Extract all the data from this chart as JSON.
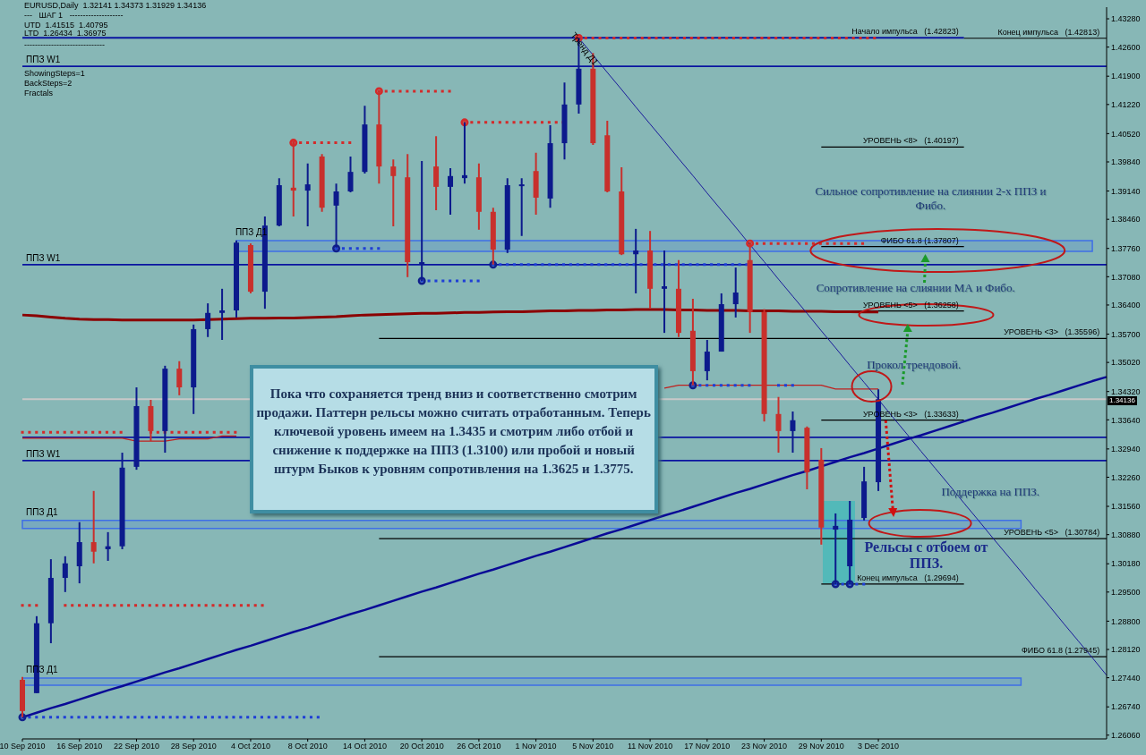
{
  "chart_data": {
    "type": "candlestick",
    "categories": [
      "10 Sep 2010",
      null,
      null,
      null,
      "16 Sep 2010",
      null,
      null,
      null,
      "22 Sep 2010",
      null,
      null,
      null,
      "28 Sep 2010",
      null,
      null,
      null,
      "4 Oct 2010",
      null,
      null,
      null,
      "8 Oct 2010",
      null,
      null,
      null,
      "14 Oct 2010",
      null,
      null,
      null,
      "20 Oct 2010",
      null,
      null,
      null,
      "26 Oct 2010",
      null,
      null,
      null,
      "1 Nov 2010",
      null,
      null,
      null,
      "5 Nov 2010",
      null,
      null,
      null,
      "11 Nov 2010",
      null,
      null,
      null,
      "17 Nov 2010",
      null,
      null,
      null,
      "23 Nov 2010",
      null,
      null,
      null,
      "29 Nov 2010",
      null,
      null,
      null,
      "3 Dec 2010",
      null,
      null,
      null,
      null,
      null,
      null,
      null,
      null,
      null,
      null,
      null,
      null,
      null,
      null,
      null,
      null
    ],
    "ohlc": [
      [
        1.2739,
        1.2746,
        1.2649,
        1.2664
      ],
      [
        1.2707,
        1.2892,
        1.2707,
        1.2875
      ],
      [
        1.2875,
        1.3029,
        1.2827,
        1.2984
      ],
      [
        1.2984,
        1.3036,
        1.295,
        1.3019
      ],
      [
        1.3012,
        1.3118,
        1.2971,
        1.307
      ],
      [
        1.307,
        1.3193,
        1.3019,
        1.3047
      ],
      [
        1.3053,
        1.3094,
        1.3025,
        1.306
      ],
      [
        1.306,
        1.3285,
        1.3053,
        1.3249
      ],
      [
        1.3251,
        1.3442,
        1.3244,
        1.3397
      ],
      [
        1.3397,
        1.3412,
        1.3313,
        1.3337
      ],
      [
        1.3337,
        1.3494,
        1.3285,
        1.3487
      ],
      [
        1.3487,
        1.3505,
        1.3423,
        1.3442
      ],
      [
        1.3442,
        1.3593,
        1.3378,
        1.3582
      ],
      [
        1.3582,
        1.3644,
        1.3563,
        1.3621
      ],
      [
        1.3621,
        1.3679,
        1.3556,
        1.3627
      ],
      [
        1.3627,
        1.3795,
        1.361,
        1.379
      ],
      [
        1.3784,
        1.3788,
        1.3668,
        1.3672
      ],
      [
        1.3672,
        1.3853,
        1.3631,
        1.3831
      ],
      [
        1.3831,
        1.3945,
        1.3829,
        1.3928
      ],
      [
        1.3922,
        1.4029,
        1.3853,
        1.3915
      ],
      [
        1.3915,
        1.398,
        1.3829,
        1.393
      ],
      [
        1.3997,
        1.4003,
        1.3864,
        1.3874
      ],
      [
        1.3879,
        1.3932,
        1.3778,
        1.3913
      ],
      [
        1.3913,
        1.3997,
        1.3911,
        1.396
      ],
      [
        1.396,
        1.4119,
        1.3956,
        1.4074
      ],
      [
        1.4074,
        1.4154,
        1.3932,
        1.3973
      ],
      [
        1.3973,
        1.399,
        1.3829,
        1.395
      ],
      [
        1.3947,
        1.4003,
        1.3707,
        1.3743
      ],
      [
        1.3737,
        1.3986,
        1.3698,
        1.3743
      ],
      [
        1.3973,
        1.4046,
        1.3868,
        1.3924
      ],
      [
        1.3924,
        1.3969,
        1.3857,
        1.395
      ],
      [
        1.3945,
        1.4079,
        1.3932,
        1.3952
      ],
      [
        1.3947,
        1.398,
        1.3821,
        1.3864
      ],
      [
        1.3864,
        1.3874,
        1.3737,
        1.3773
      ],
      [
        1.3773,
        1.3945,
        1.3765,
        1.3928
      ],
      [
        1.3926,
        1.3945,
        1.3806,
        1.393
      ],
      [
        1.3962,
        1.4006,
        1.3857,
        1.3898
      ],
      [
        1.3896,
        1.4072,
        1.3874,
        1.4029
      ],
      [
        1.4029,
        1.4175,
        1.399,
        1.4122
      ],
      [
        1.4122,
        1.4282,
        1.41,
        1.4208
      ],
      [
        1.4208,
        1.4246,
        1.4025,
        1.4029
      ],
      [
        1.4048,
        1.4083,
        1.3911,
        1.3913
      ],
      [
        1.3913,
        1.3971,
        1.376,
        1.3762
      ],
      [
        1.3762,
        1.3823,
        1.3668,
        1.3771
      ],
      [
        1.3771,
        1.3818,
        1.3631,
        1.3679
      ],
      [
        1.3679,
        1.3771,
        1.3573,
        1.3685
      ],
      [
        1.3679,
        1.3748,
        1.3563,
        1.3573
      ],
      [
        1.3578,
        1.3655,
        1.3447,
        1.3481
      ],
      [
        1.3481,
        1.3556,
        1.3459,
        1.3528
      ],
      [
        1.3528,
        1.3668,
        1.3528,
        1.3642
      ],
      [
        1.3642,
        1.373,
        1.361,
        1.367
      ],
      [
        1.3748,
        1.3788,
        1.3573,
        1.3623
      ],
      [
        1.3623,
        1.363,
        1.336,
        1.3378
      ],
      [
        1.3378,
        1.3419,
        1.3285,
        1.3337
      ],
      [
        1.3337,
        1.3384,
        1.3285,
        1.3363
      ],
      [
        1.3345,
        1.3348,
        1.3197,
        1.3238
      ],
      [
        1.3268,
        1.3296,
        1.3064,
        1.3105
      ],
      [
        1.31,
        1.3139,
        1.2969,
        1.3109
      ],
      [
        1.3012,
        1.3169,
        1.2969,
        1.3124
      ],
      [
        1.3128,
        1.3251,
        1.3122,
        1.3216
      ],
      [
        1.32141,
        1.34373,
        1.31929,
        1.34136
      ],
      null,
      null,
      null,
      null,
      null,
      null,
      null,
      null,
      null,
      null,
      null,
      null,
      null,
      null,
      null,
      null
    ],
    "colors": [
      "#c8302c",
      "#0c1a8c",
      "#0c1a8c",
      "#0c1a8c",
      "#0c1a8c",
      "#c8302c",
      "#0c1a8c",
      "#0c1a8c",
      "#0c1a8c",
      "#c8302c",
      "#0c1a8c",
      "#c8302c",
      "#0c1a8c",
      "#0c1a8c",
      "#0c1a8c",
      "#0c1a8c",
      "#c8302c",
      "#0c1a8c",
      "#0c1a8c",
      "#c8302c",
      "#0c1a8c",
      "#c8302c",
      "#0c1a8c",
      "#0c1a8c",
      "#0c1a8c",
      "#c8302c",
      "#c8302c",
      "#c8302c",
      "#0c1a8c",
      "#c8302c",
      "#0c1a8c",
      "#0c1a8c",
      "#c8302c",
      "#c8302c",
      "#0c1a8c",
      "#0c1a8c",
      "#c8302c",
      "#0c1a8c",
      "#0c1a8c",
      "#0c1a8c",
      "#c8302c",
      "#c8302c",
      "#c8302c",
      "#0c1a8c",
      "#c8302c",
      "#0c1a8c",
      "#c8302c",
      "#c8302c",
      "#0c1a8c",
      "#0c1a8c",
      "#0c1a8c",
      "#c8302c",
      "#c8302c",
      "#c8302c",
      "#0c1a8c",
      "#c8302c",
      "#c8302c",
      "#0c1a8c",
      "#0c1a8c",
      "#0c1a8c",
      "#0c1a8c",
      null,
      null,
      null,
      null,
      null,
      null,
      null,
      null,
      null,
      null,
      null,
      null,
      null,
      null,
      null,
      null
    ],
    "series": [
      {
        "type": "line",
        "color": "#8b0000",
        "values": [
          1.3616,
          1.3614,
          1.3611,
          1.3608,
          1.3606,
          1.3605,
          1.3605,
          1.3604,
          1.3604,
          1.3604,
          1.3604,
          1.3604,
          1.3604,
          1.3605,
          1.3606,
          1.3607,
          1.3608,
          1.3608,
          1.3609,
          1.3609,
          1.361,
          1.3611,
          1.3612,
          1.3614,
          1.3616,
          1.3617,
          1.3618,
          1.3619,
          1.362,
          1.362,
          1.3621,
          1.3622,
          1.3622,
          1.3623,
          1.3624,
          1.3624,
          1.3625,
          1.3626,
          1.3626,
          1.3627,
          1.3627,
          1.3628,
          1.3628,
          1.3629,
          1.3629,
          1.3629,
          1.3628,
          1.3628,
          1.3627,
          1.3627,
          1.3627,
          1.3626,
          1.3626,
          1.3626,
          1.3625,
          1.3625,
          1.3625,
          1.3624,
          1.3624,
          1.3623,
          1.3623,
          null,
          null,
          null,
          null,
          null,
          null,
          null,
          null,
          null,
          null,
          null,
          null,
          null,
          null,
          null,
          null
        ]
      },
      {
        "type": "line",
        "color": "#c0201e",
        "values": [
          1.332,
          1.332,
          1.332,
          1.332,
          1.332,
          1.332,
          1.332,
          1.332,
          1.3313,
          1.3313,
          1.3313,
          1.3318,
          1.3318,
          1.3318,
          1.3325,
          1.3325,
          null,
          null,
          null,
          null,
          null,
          null,
          null,
          null,
          null,
          null,
          null,
          null,
          null,
          null,
          null,
          null,
          null,
          null,
          null,
          null,
          null,
          null,
          null,
          null,
          null,
          null,
          null,
          null,
          null,
          1.344,
          1.3447,
          1.3447,
          1.3447,
          1.3447,
          1.3447,
          1.3447,
          1.3447,
          1.3447,
          1.3447,
          1.3447,
          1.3447,
          1.3438,
          1.3438,
          1.3438,
          1.3438,
          null,
          null,
          null,
          null,
          null,
          null,
          null,
          null,
          null,
          null,
          null,
          null,
          null,
          null,
          null,
          null
        ]
      },
      {
        "type": "line",
        "line_style": "dotted",
        "color": "#d42a2a",
        "values": [
          1.3334,
          1.3334,
          1.3334,
          1.3334,
          1.3334,
          1.3334,
          1.3334,
          1.3334,
          null,
          1.3334,
          1.3334,
          1.3334,
          1.3334,
          1.3334,
          1.3334,
          1.3334,
          null,
          null,
          null,
          1.403,
          1.403,
          1.403,
          1.403,
          1.403,
          null,
          null,
          null,
          null,
          null,
          null,
          null,
          1.4079,
          1.4079,
          1.4079,
          1.4079,
          1.4079,
          1.4079,
          1.4079,
          1.4079,
          null,
          null,
          null,
          null,
          null,
          null,
          null,
          null,
          null,
          null,
          null,
          null,
          1.3788,
          1.3788,
          1.3788,
          1.3788,
          1.3788,
          1.3788,
          1.3788,
          1.3788,
          1.3788,
          null,
          null,
          null,
          null,
          null,
          null,
          null,
          null,
          null,
          null,
          null,
          null,
          null,
          null,
          null,
          null,
          null
        ]
      },
      {
        "type": "line",
        "line_style": "dotted",
        "color": "#d42a2a",
        "values": [
          1.2918,
          1.2918,
          null,
          1.2918,
          1.2918,
          1.2918,
          1.2918,
          1.2918,
          1.2918,
          1.2918,
          1.2918,
          1.2918,
          1.2918,
          1.2918,
          1.2918,
          1.2918,
          1.2918,
          1.2918,
          null,
          null,
          null,
          null,
          null,
          null,
          null,
          1.4154,
          1.4154,
          1.4154,
          1.4154,
          1.4154,
          1.4154,
          null,
          null,
          null,
          null,
          null,
          null,
          null,
          null,
          1.4282,
          1.4282,
          1.4282,
          1.4282,
          1.4282,
          1.4282,
          1.4282,
          1.4282,
          1.4282,
          1.4282,
          1.4282,
          1.4282,
          1.4282,
          1.4282,
          1.4282,
          1.4282,
          1.4282,
          1.4282,
          1.4282,
          1.4282,
          1.4282,
          1.4282,
          null,
          null,
          null,
          null,
          null,
          null,
          null,
          null,
          null,
          null,
          null,
          null,
          null,
          null,
          null,
          null
        ]
      },
      {
        "type": "line",
        "line_style": "dotted",
        "color": "#1f3fd6",
        "values": [
          1.2649,
          1.2649,
          1.2649,
          1.2649,
          1.2649,
          1.2649,
          1.2649,
          1.2649,
          1.2649,
          1.2649,
          1.2649,
          1.2649,
          1.2649,
          1.2649,
          1.2649,
          1.2649,
          1.2649,
          1.2649,
          1.2649,
          1.2649,
          1.2649,
          1.2649,
          null,
          null,
          null,
          null,
          null,
          null,
          1.3698,
          1.3698,
          1.3698,
          1.3698,
          1.3698,
          null,
          null,
          null,
          null,
          null,
          null,
          null,
          null,
          null,
          null,
          null,
          null,
          null,
          null,
          null,
          null,
          null,
          null,
          null,
          null,
          null,
          null,
          null,
          null,
          1.2969,
          1.2969,
          1.2969,
          null,
          null,
          null,
          null,
          null,
          null,
          null,
          null,
          null,
          null,
          null,
          null,
          null,
          null,
          null,
          null,
          null
        ]
      },
      {
        "type": "line",
        "line_style": "dotted",
        "color": "#1f3fd6",
        "values": [
          null,
          null,
          null,
          null,
          null,
          null,
          null,
          null,
          null,
          null,
          null,
          null,
          null,
          null,
          null,
          null,
          null,
          null,
          null,
          null,
          null,
          null,
          1.3776,
          1.3776,
          1.3776,
          1.3776,
          null,
          null,
          null,
          null,
          null,
          null,
          null,
          1.3737,
          1.3737,
          1.3737,
          1.3737,
          1.3737,
          1.3737,
          1.3737,
          1.3737,
          1.3737,
          1.3737,
          1.3737,
          1.3737,
          1.3737,
          1.3737,
          1.3737,
          1.3737,
          1.3737,
          1.3737,
          1.3737,
          null,
          null,
          null,
          null,
          null,
          null,
          null,
          null,
          null,
          null,
          null,
          null,
          null,
          null,
          null,
          null,
          null,
          null,
          null,
          null,
          null,
          null,
          null,
          null,
          null
        ]
      },
      {
        "type": "line",
        "line_style": "dotted",
        "color": "#1f3fd6",
        "values": [
          null,
          null,
          null,
          null,
          null,
          null,
          null,
          null,
          null,
          null,
          null,
          null,
          null,
          null,
          null,
          null,
          null,
          null,
          null,
          null,
          null,
          null,
          null,
          null,
          null,
          null,
          null,
          null,
          null,
          null,
          null,
          null,
          null,
          null,
          null,
          null,
          null,
          null,
          null,
          null,
          null,
          null,
          null,
          null,
          null,
          null,
          null,
          1.3447,
          1.3447,
          1.3447,
          1.3447,
          1.3447,
          null,
          1.3447,
          1.3447,
          null,
          null,
          null,
          null,
          null,
          null,
          null,
          null,
          null,
          null,
          null,
          null,
          null,
          null,
          null,
          null,
          null,
          null,
          null,
          null,
          null,
          null
        ]
      },
      {
        "type": "scatter",
        "marker": "circle",
        "color": "#d42a2a",
        "values": [
          null,
          null,
          null,
          null,
          null,
          null,
          null,
          null,
          null,
          null,
          null,
          null,
          null,
          null,
          null,
          null,
          null,
          null,
          null,
          1.403,
          null,
          null,
          null,
          null,
          null,
          1.4154,
          null,
          null,
          null,
          null,
          null,
          1.4079,
          null,
          null,
          null,
          null,
          null,
          null,
          null,
          1.4282,
          null,
          null,
          null,
          null,
          null,
          null,
          null,
          null,
          null,
          null,
          null,
          1.3788,
          null,
          null,
          null,
          null,
          null,
          null,
          null,
          null,
          null,
          null,
          null,
          null,
          null,
          null,
          null,
          null,
          null,
          null,
          null,
          null,
          null,
          null,
          null,
          null,
          null
        ]
      },
      {
        "type": "scatter",
        "marker": "circle",
        "color": "#10208c",
        "values": [
          1.2649,
          null,
          null,
          null,
          null,
          null,
          null,
          null,
          null,
          null,
          null,
          null,
          null,
          null,
          null,
          null,
          null,
          null,
          null,
          null,
          null,
          null,
          1.3776,
          null,
          null,
          null,
          null,
          null,
          1.3698,
          null,
          null,
          null,
          null,
          1.3737,
          null,
          null,
          null,
          null,
          null,
          null,
          null,
          null,
          null,
          null,
          null,
          null,
          null,
          1.3447,
          null,
          null,
          null,
          null,
          null,
          null,
          null,
          null,
          null,
          1.2969,
          1.2969,
          null,
          null,
          null,
          null,
          null,
          null,
          null,
          null,
          null,
          null,
          null,
          null,
          null,
          null,
          null,
          null,
          null,
          null
        ]
      },
      {
        "type": "line",
        "color": "#0a0a96",
        "values": [
          1.2649,
          1.266,
          1.2671,
          1.2681,
          1.2692,
          1.2703,
          1.2714,
          1.2724,
          1.2735,
          1.2746,
          1.2757,
          1.2767,
          1.2778,
          1.2789,
          1.28,
          1.2811,
          1.2821,
          1.2832,
          1.2843,
          1.2854,
          1.2864,
          1.2875,
          1.2886,
          1.2897,
          1.2907,
          1.2918,
          1.2929,
          1.294,
          1.2951,
          1.2961,
          1.2972,
          1.2983,
          1.2994,
          1.3004,
          1.3015,
          1.3026,
          1.3037,
          1.3047,
          1.3058,
          1.3069,
          1.308,
          1.3091,
          1.3101,
          1.3112,
          1.3123,
          1.3134,
          1.3144,
          1.3155,
          1.3166,
          1.3177,
          1.3188,
          1.3198,
          1.3209,
          1.322,
          1.3231,
          1.3241,
          1.3252,
          1.3263,
          1.3274,
          1.3284,
          1.3295,
          1.3306,
          1.3317,
          1.3327,
          1.3338,
          1.3349,
          1.336,
          1.3371,
          1.3381,
          1.3392,
          1.3403,
          1.3414,
          1.3424,
          1.3435,
          1.3446,
          1.3457,
          1.3467
        ]
      },
      {
        "type": "line",
        "color": "#1a1a9a",
        "values": [
          null,
          null,
          null,
          null,
          null,
          null,
          null,
          null,
          null,
          null,
          null,
          null,
          null,
          null,
          null,
          null,
          null,
          null,
          null,
          null,
          null,
          null,
          null,
          null,
          null,
          null,
          null,
          null,
          null,
          null,
          null,
          null,
          null,
          null,
          null,
          null,
          null,
          null,
          null,
          1.4282,
          1.4241,
          1.4199,
          1.4158,
          1.4116,
          1.4075,
          1.4034,
          1.3992,
          1.3951,
          1.3909,
          1.3868,
          1.3827,
          1.3785,
          1.3744,
          1.3702,
          1.3661,
          1.362,
          1.3578,
          1.3537,
          1.3495,
          1.3454,
          1.3413,
          1.3371,
          1.333,
          1.3288,
          1.3247,
          1.3206,
          1.3164,
          1.3123,
          1.3081,
          1.304,
          1.2999,
          1.2957,
          1.2916,
          1.2874,
          1.2833,
          1.2792,
          1.275
        ]
      }
    ],
    "ylim": [
      1.2597,
      1.4356
    ],
    "yticks": [
      {
        "value": 1.4328,
        "label": "1.43280"
      },
      {
        "value": 1.426,
        "label": "1.42600"
      },
      {
        "value": 1.419,
        "label": "1.41900"
      },
      {
        "value": 1.4122,
        "label": "1.41220"
      },
      {
        "value": 1.4052,
        "label": "1.40520"
      },
      {
        "value": 1.3984,
        "label": "1.39840"
      },
      {
        "value": 1.3914,
        "label": "1.39140"
      },
      {
        "value": 1.3846,
        "label": "1.38460"
      },
      {
        "value": 1.3776,
        "label": "1.37760"
      },
      {
        "value": 1.3708,
        "label": "1.37080"
      },
      {
        "value": 1.364,
        "label": "1.36400"
      },
      {
        "value": 1.357,
        "label": "1.35700"
      },
      {
        "value": 1.3502,
        "label": "1.35020"
      },
      {
        "value": 1.3432,
        "label": "1.34320"
      },
      {
        "value": 1.3364,
        "label": "1.33640"
      },
      {
        "value": 1.3294,
        "label": "1.32940"
      },
      {
        "value": 1.3226,
        "label": "1.32260"
      },
      {
        "value": 1.3156,
        "label": "1.31560"
      },
      {
        "value": 1.3088,
        "label": "1.30880"
      },
      {
        "value": 1.3018,
        "label": "1.30180"
      },
      {
        "value": 1.295,
        "label": "1.29500"
      },
      {
        "value": 1.288,
        "label": "1.28800"
      },
      {
        "value": 1.2812,
        "label": "1.28120"
      },
      {
        "value": 1.2744,
        "label": "1.27440"
      },
      {
        "value": 1.2674,
        "label": "1.26740"
      },
      {
        "value": 1.2606,
        "label": "1.26060"
      }
    ],
    "ref_lines": [
      {
        "axis": "y",
        "value": 1.42823,
        "label": "Начало импульса   (1.42823)",
        "color": "#0a14a0"
      },
      {
        "axis": "y",
        "value": 1.4214,
        "label": "ППЗ W1",
        "color": "#0a14a0"
      },
      {
        "axis": "y",
        "value": 1.3737,
        "label": "ППЗ W1",
        "color": "#0a14a0"
      },
      {
        "axis": "y",
        "value": 1.3322,
        "label": null,
        "color": "#0a14a0"
      },
      {
        "axis": "y",
        "value": 1.3266,
        "label": "ППЗ W1",
        "color": "#0a14a0"
      },
      {
        "axis": "y",
        "value": 1.40197,
        "label": "УРОВЕНЬ <8>   (1.40197)",
        "color": "#000000"
      },
      {
        "axis": "y",
        "value": 1.37807,
        "label": "ФИБО 61.8 (1.37807)",
        "color": "#000000"
      },
      {
        "axis": "y",
        "value": 1.36258,
        "label": "УРОВЕНЬ <5>   (1.36258)",
        "color": "#000000"
      },
      {
        "axis": "y",
        "value": 1.35596,
        "label": "УРОВЕНЬ <3>   (1.35596)",
        "color": "#000000"
      },
      {
        "axis": "y",
        "value": 1.33633,
        "label": "УРОВЕНЬ <3>   (1.33633)",
        "color": "#000000"
      },
      {
        "axis": "y",
        "value": 1.30784,
        "label": "УРОВЕНЬ <5>   (1.30784)",
        "color": "#000000"
      },
      {
        "axis": "y",
        "value": 1.29694,
        "label": "Конец импульса   (1.29694)",
        "color": "#000000"
      },
      {
        "axis": "y",
        "value": 1.27945,
        "label": "ФИБО 61.8 (1.27945)",
        "color": "#000000"
      },
      {
        "axis": "y",
        "value": 1.34136,
        "label": "1.34136",
        "color": "#c8c8c8"
      },
      {
        "axis": "y",
        "value": 1.42813,
        "label": "Конец импульса   (1.42813)",
        "color": "#000000"
      }
    ],
    "bands": [
      {
        "axis": "y",
        "from": 1.3769,
        "to": 1.3795,
        "label": "ППЗ Д1",
        "color": "#3f6fe6"
      },
      {
        "axis": "y",
        "from": 1.3103,
        "to": 1.3122,
        "label": "ППЗ Д1",
        "color": "#3f6fe6"
      },
      {
        "axis": "y",
        "from": 1.2726,
        "to": 1.2743,
        "label": "ППЗ Д1",
        "color": "#3f6fe6"
      }
    ],
    "annotations": [
      "EURUSD,Daily  1.32141 1.34373 1.31929 1.34136",
      "---   ШАГ 1   --------------------",
      "UTD  1.41515  1.40795",
      "LTD  1.26434  1.36975",
      "------------------------------",
      "ShowingSteps=1",
      "BackSteps=2",
      "Fractals",
      "Тренд Д1",
      "Сильное сопротивление на слиянии 2-х ППЗ и Фибо.",
      "Сопротивление на слиянии МА и Фибо.",
      "Прокол трендовой.",
      "Поддержка на ППЗ.",
      "Рельсы с отбоем от ППЗ.",
      "Пока что сохраняется тренд вниз и соответственно смотрим продажи. Паттерн рельсы можно считать отработанным. Теперь ключевой уровень имеем на 1.3435 и смотрим либо отбой и снижение к поддержке на ППЗ (1.3100) или пробой и новый штурм Быков к уровням сопротивления на 1.3625 и 1.3775."
    ]
  }
}
